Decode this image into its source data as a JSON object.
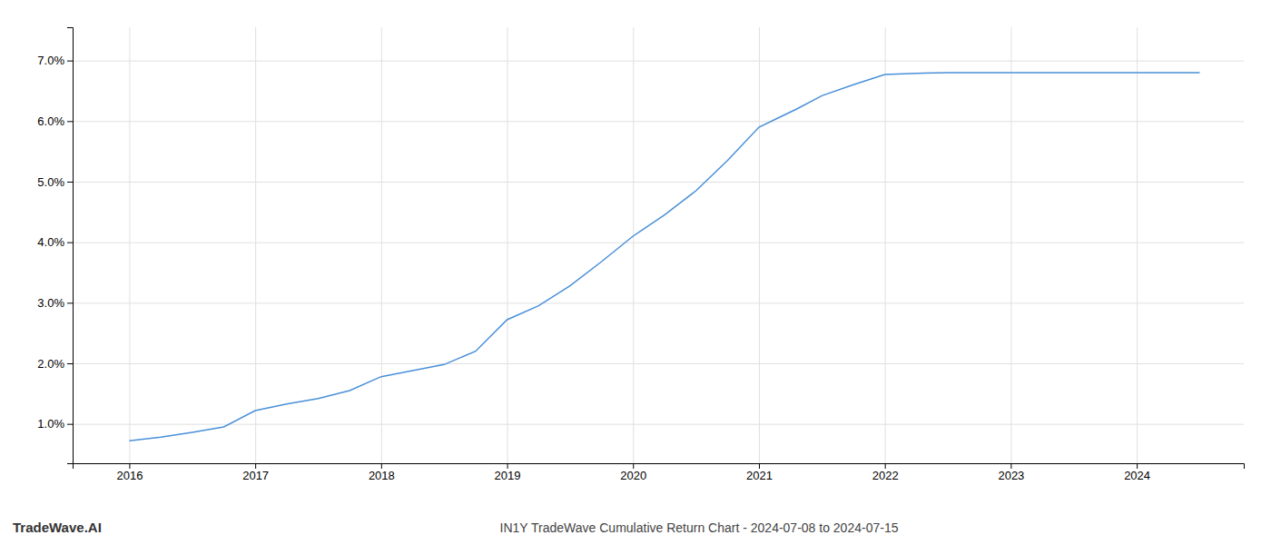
{
  "chart_data": {
    "type": "line",
    "title": "IN1Y TradeWave Cumulative Return Chart - 2024-07-08 to 2024-07-15",
    "annotations": [
      "TradeWave.AI"
    ],
    "x": [
      2016.0,
      2016.25,
      2016.5,
      2016.75,
      2017.0,
      2017.25,
      2017.5,
      2017.75,
      2018.0,
      2018.25,
      2018.5,
      2018.75,
      2019.0,
      2019.25,
      2019.5,
      2019.75,
      2020.0,
      2020.25,
      2020.5,
      2020.75,
      2021.0,
      2021.15,
      2021.3,
      2021.5,
      2021.75,
      2022.0,
      2022.25,
      2022.5,
      2022.75,
      2023.0,
      2023.25,
      2023.5,
      2023.75,
      2024.0,
      2024.25,
      2024.5
    ],
    "values": [
      0.72,
      0.78,
      0.86,
      0.95,
      1.22,
      1.33,
      1.42,
      1.55,
      1.78,
      1.88,
      1.98,
      2.2,
      2.72,
      2.95,
      3.28,
      3.68,
      4.1,
      4.45,
      4.85,
      5.35,
      5.9,
      6.05,
      6.2,
      6.42,
      6.6,
      6.77,
      6.79,
      6.8,
      6.8,
      6.8,
      6.8,
      6.8,
      6.8,
      6.8,
      6.8,
      6.8
    ],
    "color": "#4a90d9",
    "xlim": [
      2015.55,
      2024.85
    ],
    "ylim": [
      0.35,
      7.55
    ],
    "xticks": [
      2016,
      2017,
      2018,
      2019,
      2020,
      2021,
      2022,
      2023,
      2024
    ],
    "yticks": [
      {
        "value": 1.0,
        "label": "1.0%"
      },
      {
        "value": 2.0,
        "label": "2.0%"
      },
      {
        "value": 3.0,
        "label": "3.0%"
      },
      {
        "value": 4.0,
        "label": "4.0%"
      },
      {
        "value": 5.0,
        "label": "5.0%"
      },
      {
        "value": 6.0,
        "label": "6.0%"
      },
      {
        "value": 7.0,
        "label": "7.0%"
      }
    ],
    "grid": true
  }
}
